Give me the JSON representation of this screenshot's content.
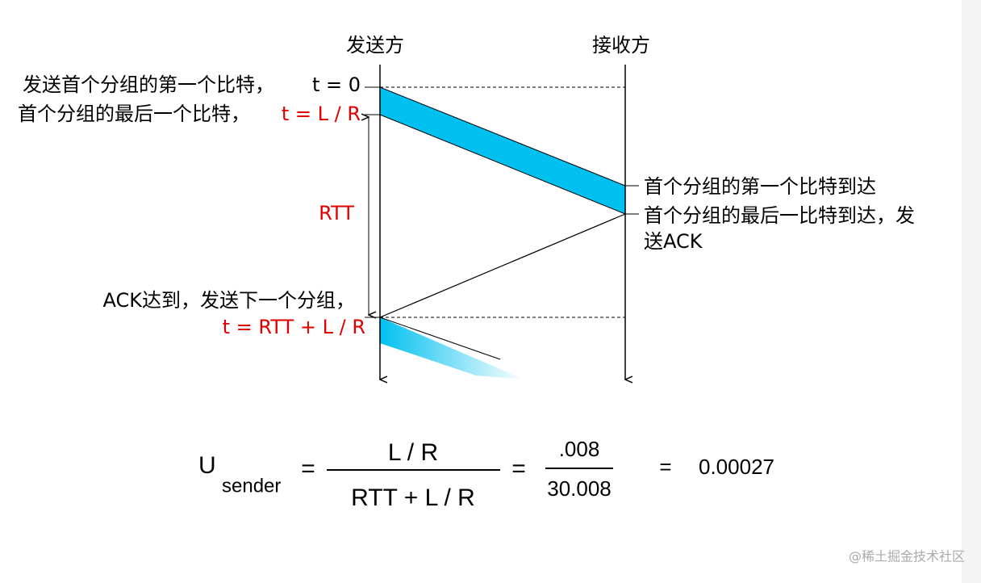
{
  "diagram": {
    "sender_label": "发送方",
    "receiver_label": "接收方",
    "first_bit_sent": "发送首个分组的第一个比特，",
    "t0": "t = 0",
    "last_bit_sent": "首个分组的最后一个比特，",
    "t_lr": "t = L / R",
    "rtt": "RTT",
    "first_bit_arrives": "首个分组的第一个比特到达",
    "last_bit_arrives_line1": "首个分组的最后一比特到达，发",
    "last_bit_arrives_line2": "送ACK",
    "ack_arrives": "ACK达到，发送下一个分组，",
    "t_next": "t = RTT + L / R"
  },
  "formula": {
    "u": "U",
    "subscript": "sender",
    "eq1": "=",
    "numerator": "L / R",
    "denominator": "RTT + L / R",
    "eq2": "=",
    "num_value": ".008",
    "den_value": "30.008",
    "eq3": "=",
    "result": "0.00027"
  },
  "watermark": "@稀土掘金技术社区"
}
